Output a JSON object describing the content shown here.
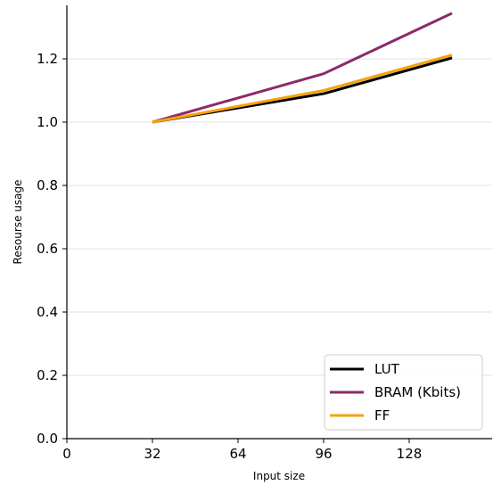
{
  "chart_data": {
    "type": "line",
    "title": "",
    "xlabel": "Input size",
    "ylabel": "Resourse usage",
    "x": [
      32,
      96,
      144
    ],
    "xlim": [
      0,
      160
    ],
    "ylim": [
      0,
      1.4
    ],
    "xticks": [
      0,
      32,
      64,
      96,
      128
    ],
    "xtick_labels": [
      "0",
      "32",
      "64",
      "96",
      "128"
    ],
    "yticks": [
      0.0,
      0.2,
      0.4,
      0.6,
      0.8,
      1.0,
      1.2
    ],
    "ytick_labels": [
      "0.0",
      "0.2",
      "0.4",
      "0.6",
      "0.8",
      "1.0",
      "1.2"
    ],
    "grid": "horizontal",
    "legend_position": "bottom-right",
    "series": [
      {
        "name": "LUT",
        "color": "#000000",
        "values": [
          1.0,
          1.09,
          1.203
        ]
      },
      {
        "name": "BRAM (Kbits)",
        "color": "#8b2a6b",
        "values": [
          1.0,
          1.153,
          1.344
        ]
      },
      {
        "name": "FF",
        "color": "#f5a30a",
        "values": [
          1.0,
          1.1,
          1.212
        ]
      }
    ]
  }
}
